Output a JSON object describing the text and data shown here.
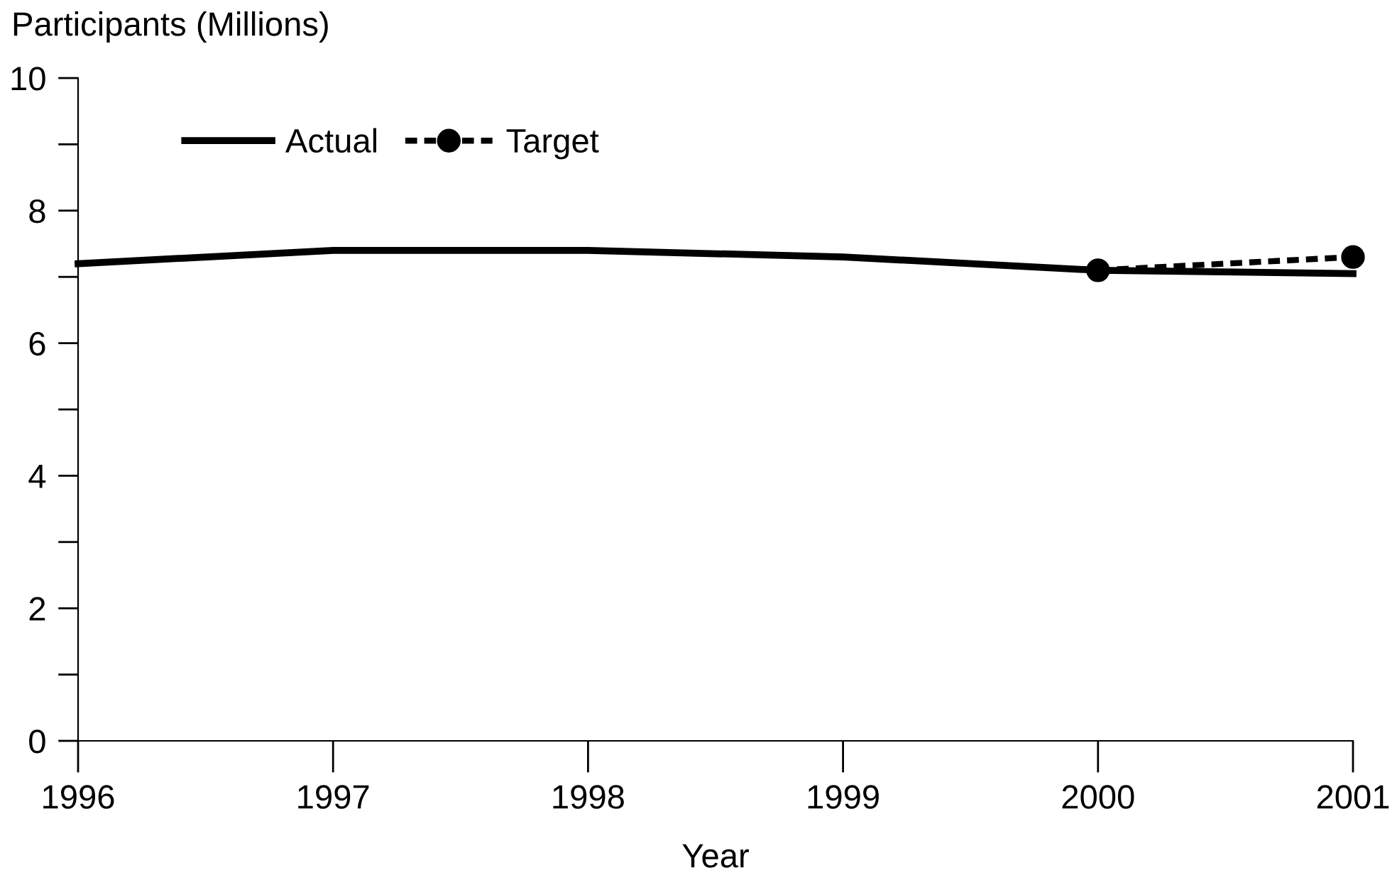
{
  "chart_data": {
    "type": "line",
    "ylabel": "Participants (Millions)",
    "xlabel": "Year",
    "x": [
      1996,
      1997,
      1998,
      1999,
      2000,
      2001
    ],
    "xlim": [
      1996,
      2001
    ],
    "xticks": [
      1996,
      1997,
      1998,
      1999,
      2000,
      2001
    ],
    "ylim": [
      0,
      10
    ],
    "yticks": [
      0,
      {
        "value": 1,
        "label": null
      },
      2,
      {
        "value": 3,
        "label": null
      },
      4,
      {
        "value": 5,
        "label": null
      },
      6,
      {
        "value": 7,
        "label": null
      },
      8,
      {
        "value": 9,
        "label": null
      },
      10
    ],
    "grid": false,
    "legend": "top left",
    "series": [
      {
        "name": "Actual",
        "color": "#000000",
        "values": [
          7.2,
          7.4,
          7.4,
          7.3,
          7.1,
          7.05
        ],
        "line_style": "solid",
        "marker": "none"
      },
      {
        "name": "Target",
        "color": "#000000",
        "values": [
          null,
          null,
          null,
          null,
          7.1,
          7.3
        ],
        "line_style": "dashed",
        "marker": "circle"
      }
    ]
  }
}
